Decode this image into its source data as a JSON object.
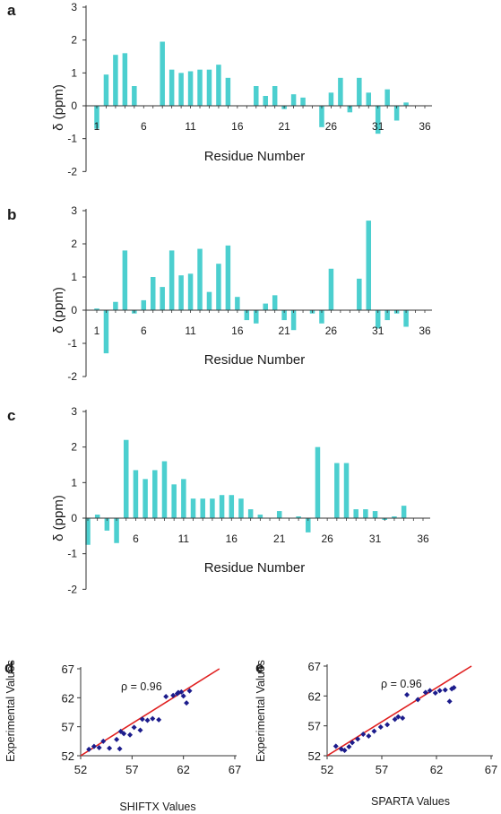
{
  "chart_data": [
    {
      "type": "bar",
      "panel": "a",
      "xlabel": "Residue Number",
      "ylabel": "δ (ppm)",
      "ylim": [
        -2,
        3
      ],
      "yticks": [
        -2,
        -1,
        0,
        1,
        2,
        3
      ],
      "xticks": [
        1,
        6,
        11,
        16,
        21,
        26,
        31,
        36
      ],
      "color": "#4ccfcf",
      "x": [
        1,
        2,
        3,
        4,
        5,
        6,
        7,
        8,
        9,
        10,
        11,
        12,
        13,
        14,
        15,
        16,
        17,
        18,
        19,
        20,
        21,
        22,
        23,
        24,
        25,
        26,
        27,
        28,
        29,
        30,
        31,
        32,
        33,
        34,
        35,
        36
      ],
      "values": [
        -0.7,
        0.95,
        1.55,
        1.6,
        0.6,
        0,
        0,
        1.95,
        1.1,
        1.0,
        1.05,
        1.1,
        1.1,
        1.25,
        0.85,
        0,
        0,
        0.6,
        0.3,
        0.6,
        -0.1,
        0.35,
        0.25,
        0,
        -0.65,
        0.4,
        0.85,
        -0.2,
        0.85,
        0.4,
        -0.85,
        0.5,
        -0.45,
        0.1,
        0,
        0
      ]
    },
    {
      "type": "bar",
      "panel": "b",
      "xlabel": "Residue Number",
      "ylabel": "δ (ppm)",
      "ylim": [
        -2,
        3
      ],
      "yticks": [
        -2,
        -1,
        0,
        1,
        2,
        3
      ],
      "xticks": [
        1,
        6,
        11,
        16,
        21,
        26,
        31,
        36
      ],
      "color": "#4ccfcf",
      "x": [
        1,
        2,
        3,
        4,
        5,
        6,
        7,
        8,
        9,
        10,
        11,
        12,
        13,
        14,
        15,
        16,
        17,
        18,
        19,
        20,
        21,
        22,
        23,
        24,
        25,
        26,
        27,
        28,
        29,
        30,
        31,
        32,
        33,
        34,
        35,
        36
      ],
      "values": [
        0.05,
        -1.3,
        0.25,
        1.8,
        -0.1,
        0.3,
        1.0,
        0.7,
        1.8,
        1.05,
        1.1,
        1.85,
        0.55,
        1.4,
        1.95,
        0.4,
        -0.3,
        -0.4,
        0.2,
        0.45,
        -0.3,
        -0.6,
        0,
        -0.1,
        -0.4,
        1.25,
        0,
        0,
        0.95,
        2.7,
        -0.55,
        -0.3,
        -0.1,
        -0.5,
        0,
        0
      ]
    },
    {
      "type": "bar",
      "panel": "c",
      "xlabel": "Residue Number",
      "ylabel": "δ (ppm)",
      "ylim": [
        -2,
        3
      ],
      "yticks": [
        -2,
        -1,
        0,
        1,
        2,
        3
      ],
      "xticks": [
        6,
        11,
        16,
        21,
        26,
        31,
        36
      ],
      "color": "#4ccfcf",
      "x": [
        1,
        2,
        3,
        4,
        5,
        6,
        7,
        8,
        9,
        10,
        11,
        12,
        13,
        14,
        15,
        16,
        17,
        18,
        19,
        20,
        21,
        22,
        23,
        24,
        25,
        26,
        27,
        28,
        29,
        30,
        31,
        32,
        33,
        34,
        35,
        36
      ],
      "values": [
        -0.75,
        0.1,
        -0.35,
        -0.7,
        2.2,
        1.35,
        1.1,
        1.35,
        1.6,
        0.95,
        1.1,
        0.55,
        0.55,
        0.55,
        0.65,
        0.65,
        0.55,
        0.25,
        0.1,
        0,
        0.2,
        0,
        0.05,
        -0.4,
        2.0,
        0,
        1.55,
        1.55,
        0.25,
        0.25,
        0.2,
        -0.05,
        0.05,
        0.35,
        0,
        0
      ]
    },
    {
      "type": "scatter",
      "panel": "d",
      "xlabel": "SHIFTX Values",
      "ylabel": "Experimental Values",
      "xlim": [
        52,
        67
      ],
      "ylim": [
        52,
        67
      ],
      "ticks": [
        52,
        57,
        62,
        67
      ],
      "annotation": "ρ = 0.96",
      "point_color": "#1c1c8c",
      "line_color": "#e02020",
      "fit_line": [
        [
          52,
          52
        ],
        [
          65.5,
          67
        ]
      ],
      "points": [
        [
          52.8,
          53.1
        ],
        [
          53.3,
          53.6
        ],
        [
          53.8,
          53.4
        ],
        [
          54.2,
          54.5
        ],
        [
          54.8,
          53.3
        ],
        [
          55.8,
          53.2
        ],
        [
          55.5,
          54.8
        ],
        [
          56.2,
          55.8
        ],
        [
          55.9,
          56.2
        ],
        [
          56.8,
          55.6
        ],
        [
          57.2,
          56.9
        ],
        [
          57.8,
          56.4
        ],
        [
          58.0,
          58.3
        ],
        [
          58.5,
          58.1
        ],
        [
          59.0,
          58.4
        ],
        [
          59.6,
          58.2
        ],
        [
          60.3,
          62.2
        ],
        [
          61.0,
          62.4
        ],
        [
          61.4,
          62.7
        ],
        [
          61.8,
          63.0
        ],
        [
          62.0,
          62.3
        ],
        [
          62.3,
          61.1
        ],
        [
          62.6,
          63.2
        ],
        [
          61.5,
          62.9
        ]
      ]
    },
    {
      "type": "scatter",
      "panel": "e",
      "xlabel": "SPARTA Values",
      "ylabel": "Experimental Values",
      "xlim": [
        52,
        67
      ],
      "ylim": [
        52,
        67
      ],
      "ticks": [
        52,
        57,
        62,
        67
      ],
      "annotation": "ρ = 0.96",
      "point_color": "#1c1c8c",
      "line_color": "#e02020",
      "fit_line": [
        [
          52,
          52
        ],
        [
          65.2,
          67
        ]
      ],
      "points": [
        [
          52.8,
          53.6
        ],
        [
          53.3,
          53.1
        ],
        [
          53.6,
          52.9
        ],
        [
          54.0,
          53.5
        ],
        [
          54.3,
          54.2
        ],
        [
          54.8,
          54.8
        ],
        [
          55.3,
          55.6
        ],
        [
          55.8,
          55.3
        ],
        [
          56.3,
          56.1
        ],
        [
          56.9,
          56.8
        ],
        [
          57.5,
          57.2
        ],
        [
          58.2,
          58.1
        ],
        [
          58.9,
          58.3
        ],
        [
          59.3,
          62.2
        ],
        [
          60.3,
          61.4
        ],
        [
          61.0,
          62.6
        ],
        [
          61.4,
          62.9
        ],
        [
          61.9,
          62.5
        ],
        [
          62.3,
          62.9
        ],
        [
          62.8,
          63.0
        ],
        [
          63.2,
          61.1
        ],
        [
          63.4,
          63.2
        ],
        [
          63.6,
          63.4
        ],
        [
          58.5,
          58.5
        ]
      ]
    }
  ]
}
